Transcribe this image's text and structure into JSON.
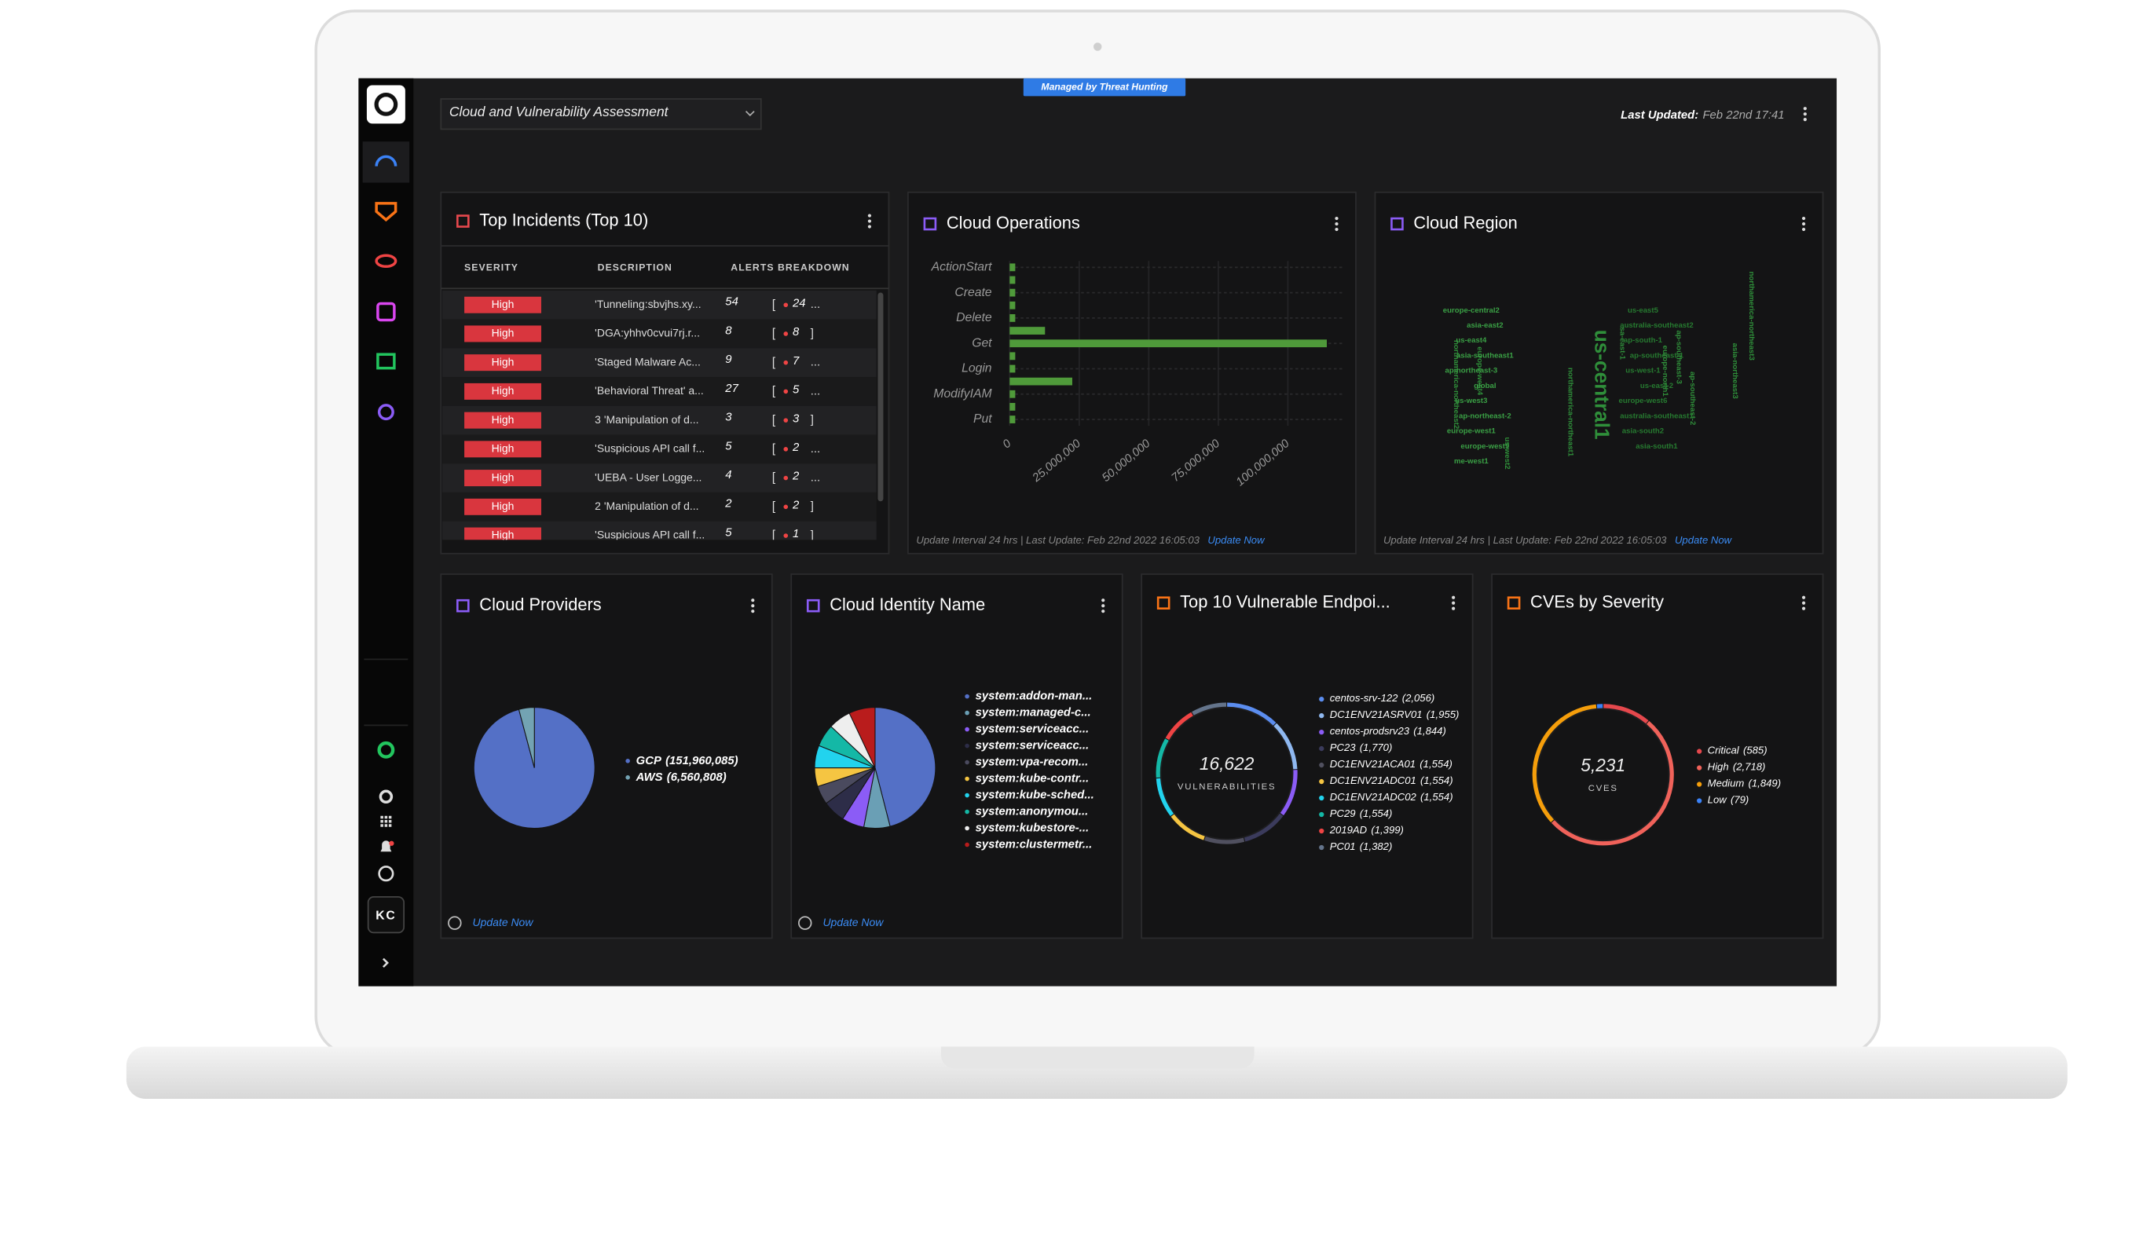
{
  "header": {
    "dashboard": "Cloud and Vulnerability Assessment",
    "badge": "Managed by Threat Hunting",
    "last_updated_label": "Last Updated:",
    "last_updated": "Feb 22nd 17:41"
  },
  "sidebar": {
    "user_initials": "KC"
  },
  "incidents": {
    "title": "Top Incidents (Top 10)",
    "columns": [
      "SEVERITY",
      "DESCRIPTION",
      "ALERTS BREAKDOWN"
    ],
    "rows": [
      [
        "High",
        "'Tunneling:sbvjhs.xy...",
        54,
        24,
        "..."
      ],
      [
        "High",
        "'DGA:yhhv0cvui7rj.r...",
        8,
        8,
        "]"
      ],
      [
        "High",
        "'Staged Malware Ac...",
        9,
        7,
        "..."
      ],
      [
        "High",
        "'Behavioral Threat' a...",
        27,
        5,
        "..."
      ],
      [
        "High",
        "3 'Manipulation of d...",
        3,
        3,
        "]"
      ],
      [
        "High",
        "'Suspicious API call f...",
        5,
        2,
        "..."
      ],
      [
        "High",
        "'UEBA - User Logge...",
        4,
        2,
        "..."
      ],
      [
        "High",
        "2 'Manipulation of d...",
        2,
        2,
        "]"
      ],
      [
        "High",
        "'Suspicious API call f...",
        5,
        1,
        "]"
      ]
    ]
  },
  "cloud_region": {
    "title": "Cloud Region",
    "words": [
      "us-central1",
      "europe-central2",
      "us-east5",
      "northamerica-northeast2",
      "asia-east2",
      "australia-southeast2",
      "europe-west4",
      "us-east4",
      "ap-south-1",
      "northamerica-northeast1",
      "asia-southeast1",
      "ap-southeast-1",
      "sa-east-1",
      "ap-northeast-3",
      "us-west-1",
      "europe-north1",
      "global",
      "us-east-2",
      "ap-southeast-3",
      "us-west3",
      "europe-west6",
      "ap-southeast-2",
      "ap-northeast-2",
      "australia-southeast1",
      "asia-northeast3",
      "europe-west1",
      "asia-south2",
      "northamerica-northeast3",
      "europe-west9",
      "asia-south1",
      "us-west2",
      "me-west1"
    ]
  },
  "footers": {
    "interval": "Update Interval 24 hrs | Last Update: Feb 22nd 2022 16:05:03",
    "update_link": "Update Now"
  },
  "chart_data": [
    {
      "type": "bar",
      "orientation": "horizontal",
      "title": "Cloud Operations",
      "categories": [
        "ActionStart",
        null,
        "Create",
        null,
        "Delete",
        null,
        "Get",
        null,
        "Login",
        null,
        "ModifyIAM",
        null,
        "Put"
      ],
      "values": [
        2000000,
        2000000,
        2000000,
        2000000,
        2000000,
        12700000,
        114000000,
        2000000,
        2000000,
        22500000,
        2000000,
        2000000,
        2000000
      ],
      "color": "#4f9a3a",
      "xlim": [
        0,
        120000000
      ],
      "xticks": [
        0,
        {
          "value": 25000000,
          "label": "25,000,000"
        },
        {
          "value": 50000000,
          "label": "50,000,000"
        },
        {
          "value": 75000000,
          "label": "75,000,000"
        },
        {
          "value": 100000000,
          "label": "100,000,000"
        }
      ],
      "grid": true
    },
    {
      "type": "pie",
      "title": "Cloud Providers",
      "categories": [
        "GCP",
        "AWS"
      ],
      "values": [
        151960085,
        6560808
      ],
      "value_labels": [
        "(151,960,085)",
        "(6,560,808)"
      ],
      "colors": [
        "#5470c6",
        "#73a3b3"
      ]
    },
    {
      "type": "pie",
      "title": "Cloud Identity Name",
      "categories": [
        "system:addon-man...",
        "system:managed-c...",
        "system:serviceacc...",
        "system:serviceacc...",
        "system:vpa-recom...",
        "system:kube-contr...",
        "system:kube-sched...",
        "system:anonymou...",
        "system:kubestore-...",
        "system:clustermetr..."
      ],
      "values": [
        46,
        7,
        6,
        6,
        5,
        5,
        6,
        6,
        6,
        7
      ],
      "colors": [
        "#5470c6",
        "#6a9fb5",
        "#8b5cf6",
        "#2d2d48",
        "#4a4a5e",
        "#f5c542",
        "#22d3ee",
        "#14b8a6",
        "#eeeeee",
        "#b91c1c"
      ]
    },
    {
      "type": "donut",
      "title": "Top 10 Vulnerable Endpoi...",
      "center_value": "16,622",
      "center_label": "VULNERABILITIES",
      "categories": [
        "centos-srv-122",
        "DC1ENV21ASRV01",
        "centos-prodsrv23",
        "PC23",
        "DC1ENV21ACA01",
        "DC1ENV21ADC01",
        "DC1ENV21ADC02",
        "PC29",
        "2019AD",
        "PC01"
      ],
      "values": [
        2056,
        1955,
        1844,
        1770,
        1554,
        1554,
        1554,
        1554,
        1399,
        1382
      ],
      "value_labels": [
        "(2,056)",
        "(1,955)",
        "(1,844)",
        "(1,770)",
        "(1,554)",
        "(1,554)",
        "(1,554)",
        "(1,554)",
        "(1,399)",
        "(1,382)"
      ],
      "colors": [
        "#5b8def",
        "#8fb8f0",
        "#8b5cf6",
        "#3b3b5c",
        "#50505f",
        "#f5c542",
        "#22d3ee",
        "#14b8a6",
        "#ef4444",
        "#64748b"
      ]
    },
    {
      "type": "donut",
      "title": "CVEs by Severity",
      "center_value": "5,231",
      "center_label": "CVES",
      "categories": [
        "Critical",
        "High",
        "Medium",
        "Low"
      ],
      "values": [
        585,
        2718,
        1849,
        79
      ],
      "value_labels": [
        "(585)",
        "(2,718)",
        "(1,849)",
        "(79)"
      ],
      "colors": [
        "#e5484d",
        "#f0625a",
        "#f59e0b",
        "#3b82f6"
      ]
    }
  ]
}
